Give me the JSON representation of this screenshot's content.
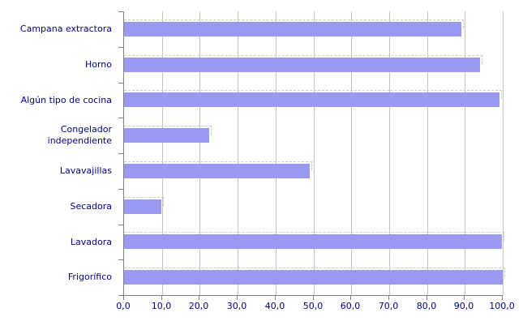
{
  "chart_data": {
    "type": "bar",
    "orientation": "horizontal",
    "title": "",
    "xlabel": "",
    "ylabel": "",
    "categories": [
      "Campana extractora",
      "Horno",
      "Algún tipo de cocina",
      "Congelador independiente",
      "Lavavajillas",
      "Secadora",
      "Lavadora",
      "Frigorífico"
    ],
    "values": [
      89.0,
      93.9,
      99.2,
      22.5,
      49.1,
      9.8,
      99.7,
      99.9
    ],
    "x_axis": {
      "min": 0,
      "max": 100,
      "step": 10,
      "tick_labels": [
        "0,0",
        "10,0",
        "20,0",
        "30,0",
        "40,0",
        "50,0",
        "60,0",
        "70,0",
        "80,0",
        "90,0",
        "100,0"
      ]
    },
    "grid": true,
    "legend": false,
    "colors": {
      "bar_fill": "#9999f2",
      "bar_selection_dash": "#c9c9c9",
      "gridline": "#c3c3c3",
      "axis_line": "#808080",
      "label_text": "#000080",
      "background": "#ffffff"
    }
  }
}
